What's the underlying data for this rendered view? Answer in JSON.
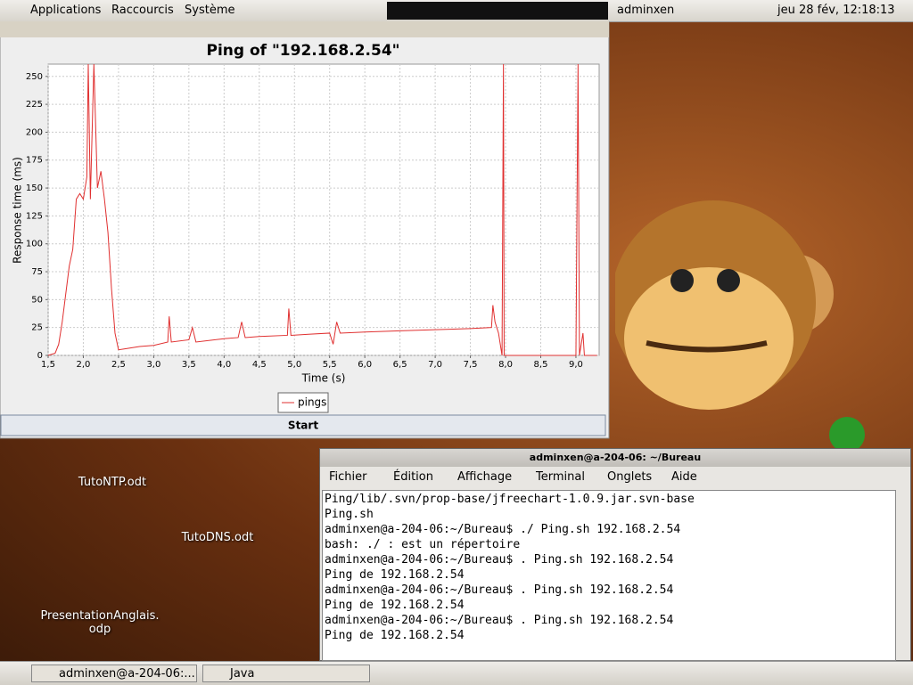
{
  "top_panel": {
    "menus": [
      "Applications",
      "Raccourcis",
      "Système"
    ],
    "user": "adminxen",
    "clock": "jeu 28 fév, 12:18:13"
  },
  "chart_window": {
    "button": "Start"
  },
  "chart_data": {
    "type": "line",
    "title": "Ping of \"192.168.2.54\"",
    "x_label": "Time (s)",
    "y_label": "Response time (ms)",
    "x": [
      1.5,
      1.6,
      1.65,
      1.7,
      1.75,
      1.8,
      1.85,
      1.9,
      1.95,
      2.0,
      2.05,
      2.07,
      2.1,
      2.15,
      2.2,
      2.25,
      2.3,
      2.35,
      2.4,
      2.45,
      2.5,
      2.6,
      2.8,
      3.0,
      3.2,
      3.22,
      3.25,
      3.5,
      3.55,
      3.6,
      4.0,
      4.2,
      4.25,
      4.3,
      4.5,
      4.9,
      4.92,
      4.95,
      5.2,
      5.5,
      5.55,
      5.6,
      5.65,
      6.0,
      6.5,
      7.0,
      7.5,
      7.8,
      7.82,
      7.85,
      7.9,
      7.95,
      7.97,
      7.98,
      8.5,
      9.0,
      9.03,
      9.05,
      9.1,
      9.12,
      9.3
    ],
    "series": [
      {
        "name": "pings",
        "color": "#e03030",
        "values": [
          0,
          2,
          10,
          30,
          55,
          80,
          95,
          140,
          145,
          140,
          160,
          261,
          140,
          261,
          150,
          165,
          140,
          110,
          60,
          20,
          5,
          6,
          8,
          9,
          12,
          35,
          12,
          14,
          25,
          12,
          15,
          16,
          30,
          16,
          17,
          18,
          42,
          18,
          19,
          20,
          10,
          30,
          20,
          21,
          22,
          23,
          24,
          25,
          45,
          30,
          20,
          0,
          261,
          0,
          0,
          0,
          261,
          0,
          20,
          0,
          0
        ]
      }
    ],
    "xlim": [
      1.5,
      9.33
    ],
    "ylim": [
      0,
      261
    ],
    "xticks": [
      {
        "value": 1.5,
        "label": "1,5"
      },
      {
        "value": 2,
        "label": "2,0"
      },
      {
        "value": 2.5,
        "label": "2,5"
      },
      {
        "value": 3,
        "label": "3,0"
      },
      {
        "value": 3.5,
        "label": "3,5"
      },
      {
        "value": 4,
        "label": "4,0"
      },
      {
        "value": 4.5,
        "label": "4,5"
      },
      {
        "value": 5,
        "label": "5,0"
      },
      {
        "value": 5.5,
        "label": "5,5"
      },
      {
        "value": 6,
        "label": "6,0"
      },
      {
        "value": 6.5,
        "label": "6,5"
      },
      {
        "value": 7,
        "label": "7,0"
      },
      {
        "value": 7.5,
        "label": "7,5"
      },
      {
        "value": 8,
        "label": "8,0"
      },
      {
        "value": 8.5,
        "label": "8,5"
      },
      {
        "value": 9,
        "label": "9,0"
      }
    ],
    "yticks": [
      0,
      25,
      50,
      75,
      100,
      125,
      150,
      175,
      200,
      225,
      250
    ],
    "grid": true
  },
  "desktop_icons": [
    "TutoNTP.odt",
    "TutoDNS.odt",
    [
      "PresentationAnglais.",
      "odp"
    ]
  ],
  "terminal": {
    "title": "adminxen@a-204-06: ~/Bureau",
    "menu": [
      "Fichier",
      "Édition",
      "Affichage",
      "Terminal",
      "Onglets",
      "Aide"
    ],
    "lines": [
      "Ping/lib/.svn/prop-base/jfreechart-1.0.9.jar.svn-base",
      "Ping.sh",
      "adminxen@a-204-06:~/Bureau$ ./ Ping.sh 192.168.2.54",
      "bash: ./ : est un répertoire",
      "adminxen@a-204-06:~/Bureau$ . Ping.sh 192.168.2.54",
      "Ping de 192.168.2.54",
      "adminxen@a-204-06:~/Bureau$ . Ping.sh 192.168.2.54",
      "Ping de 192.168.2.54",
      "adminxen@a-204-06:~/Bureau$ . Ping.sh 192.168.2.54",
      "Ping de 192.168.2.54"
    ]
  },
  "taskbar": [
    "adminxen@a-204-06:...",
    "Java"
  ]
}
